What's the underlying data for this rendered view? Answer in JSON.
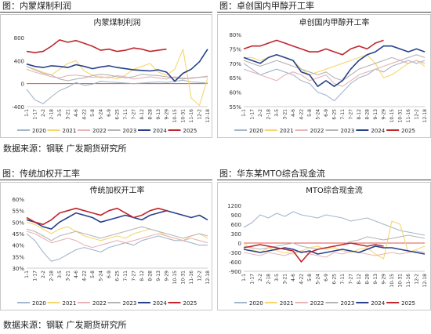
{
  "panels": [
    {
      "header": "图：内蒙煤制利润",
      "chart_data": {
        "type": "line",
        "title": "内蒙煤制利润",
        "ylim": [
          -400,
          800
        ],
        "yticks": [
          "-400",
          "0",
          "400",
          "800"
        ],
        "xticks": [
          "1-1",
          "1-17",
          "2-2",
          "2-18",
          "3-5",
          "3-21",
          "4-6",
          "4-22",
          "5-8",
          "5-24",
          "6-9",
          "6-25",
          "7-11",
          "7-27",
          "8-12",
          "8-28",
          "9-13",
          "9-29",
          "10-15",
          "10-31",
          "11-16",
          "12-2",
          "12-18"
        ],
        "series": [
          {
            "name": "2020",
            "color": "#a3b6cd",
            "values": [
              -100,
              -280,
              -350,
              -230,
              -120,
              -60,
              20,
              -30,
              -10,
              40,
              30,
              20,
              10,
              0,
              10,
              20,
              30,
              20,
              40,
              60,
              30,
              20,
              10
            ]
          },
          {
            "name": "2021",
            "color": "#f5d76e",
            "values": [
              300,
              250,
              200,
              150,
              250,
              350,
              400,
              220,
              150,
              100,
              120,
              80,
              150,
              250,
              300,
              350,
              200,
              150,
              250,
              600,
              -250,
              -380,
              100
            ]
          },
          {
            "name": "2022",
            "color": "#e8b4b8",
            "values": [
              250,
              200,
              160,
              120,
              100,
              140,
              150,
              130,
              110,
              120,
              100,
              140,
              120,
              80,
              100,
              120,
              100,
              80,
              120,
              100,
              90,
              110,
              130
            ]
          },
          {
            "name": "2023",
            "color": "#b5b5b5",
            "values": [
              300,
              240,
              180,
              150,
              80,
              50,
              80,
              100,
              140,
              160,
              150,
              120,
              100,
              120,
              160,
              150,
              140,
              120,
              100,
              80,
              100,
              110,
              120
            ]
          },
          {
            "name": "2024",
            "color": "#27408b",
            "values": [
              340,
              300,
              280,
              310,
              300,
              280,
              330,
              300,
              260,
              290,
              310,
              280,
              260,
              240,
              230,
              220,
              240,
              200,
              40,
              180,
              250,
              380,
              600
            ]
          },
          {
            "name": "2025",
            "color": "#c0272d",
            "values": [
              560,
              540,
              560,
              650,
              760,
              720,
              750,
              700,
              650,
              580,
              600,
              560,
              580,
              620,
              600,
              560,
              580,
              600,
              null,
              null,
              null,
              null,
              null
            ]
          }
        ],
        "legend": "bottom"
      }
    },
    {
      "header": "图：卓创国内甲醇开工率",
      "chart_data": {
        "type": "line",
        "title": "卓创国内甲醇开工率",
        "ylim": [
          55,
          80
        ],
        "yticks": [
          "55%",
          "60%",
          "65%",
          "70%",
          "75%",
          "80%"
        ],
        "xticks": [
          "1-1",
          "1-17",
          "2-2",
          "2-18",
          "3-5",
          "3-21",
          "4-6",
          "4-22",
          "5-8",
          "5-24",
          "6-9",
          "6-25",
          "7-11",
          "7-27",
          "8-12",
          "8-28",
          "9-13",
          "9-29",
          "10-15",
          "10-31",
          "11-16",
          "12-2",
          "12-18"
        ],
        "series": [
          {
            "name": "2020",
            "color": "#a3b6cd",
            "values": [
              70,
              68,
              66,
              67,
              68,
              67,
              66,
              64,
              63,
              60,
              59,
              57,
              60,
              63,
              65,
              66,
              68,
              67,
              69,
              70,
              71,
              70,
              71
            ]
          },
          {
            "name": "2021",
            "color": "#f5d76e",
            "values": [
              72,
              72,
              71,
              72,
              73,
              72,
              71,
              68,
              66,
              67,
              68,
              69,
              70,
              71,
              72,
              73,
              70,
              65,
              66,
              68,
              70,
              71,
              69
            ]
          },
          {
            "name": "2022",
            "color": "#e8b4b8",
            "values": [
              68,
              67,
              66,
              65,
              64,
              66,
              67,
              66,
              64,
              65,
              66,
              63,
              62,
              64,
              66,
              67,
              68,
              69,
              70,
              71,
              70,
              71,
              70
            ]
          },
          {
            "name": "2023",
            "color": "#b5b5b5",
            "values": [
              71,
              70,
              69,
              70,
              71,
              70,
              69,
              68,
              67,
              66,
              67,
              65,
              64,
              66,
              68,
              69,
              70,
              71,
              72,
              71,
              72,
              73,
              72
            ]
          },
          {
            "name": "2024",
            "color": "#27408b",
            "values": [
              72,
              71,
              70,
              72,
              73,
              72,
              71,
              67,
              66,
              62,
              64,
              62,
              64,
              68,
              71,
              73,
              74,
              76,
              76,
              75,
              74,
              75,
              74
            ]
          },
          {
            "name": "2025",
            "color": "#c0272d",
            "values": [
              75,
              76,
              76,
              77,
              78,
              77,
              76,
              75,
              74,
              74,
              75,
              74,
              73,
              75,
              76,
              75,
              77,
              78,
              null,
              null,
              null,
              null,
              null
            ]
          }
        ],
        "legend": "bottom"
      }
    },
    {
      "header": "图：传统加权开工率",
      "chart_data": {
        "type": "line",
        "title": "传统加权开工率",
        "ylim": [
          30,
          60
        ],
        "yticks": [
          "30%",
          "35%",
          "40%",
          "45%",
          "50%",
          "55%",
          "60%"
        ],
        "xticks": [
          "1-1",
          "1-17",
          "2-2",
          "2-18",
          "3-5",
          "3-21",
          "4-6",
          "4-22",
          "5-8",
          "5-24",
          "6-9",
          "6-25",
          "7-11",
          "7-27",
          "8-12",
          "8-28",
          "9-13",
          "9-29",
          "10-15",
          "10-31",
          "11-16",
          "12-2",
          "12-18"
        ],
        "series": [
          {
            "name": "2020",
            "color": "#a3b6cd",
            "values": [
              45,
              42,
              37,
              33,
              34,
              36,
              38,
              39,
              38,
              37,
              39,
              40,
              41,
              40,
              42,
              43,
              44,
              43,
              42,
              42,
              41,
              40,
              40
            ]
          },
          {
            "name": "2021",
            "color": "#f5d76e",
            "values": [
              50,
              49,
              47,
              45,
              47,
              48,
              46,
              44,
              43,
              42,
              43,
              44,
              43,
              45,
              46,
              47,
              46,
              44,
              43,
              42,
              44,
              45,
              43
            ]
          },
          {
            "name": "2022",
            "color": "#e8b4b8",
            "values": [
              46,
              45,
              43,
              41,
              42,
              43,
              42,
              40,
              39,
              40,
              41,
              42,
              41,
              42,
              43,
              44,
              45,
              44,
              43,
              42,
              43,
              42,
              41
            ]
          },
          {
            "name": "2023",
            "color": "#b5b5b5",
            "values": [
              47,
              46,
              44,
              42,
              44,
              45,
              46,
              45,
              44,
              43,
              44,
              45,
              46,
              47,
              48,
              47,
              46,
              45,
              44,
              43,
              44,
              45,
              44
            ]
          },
          {
            "name": "2024",
            "color": "#27408b",
            "values": [
              51,
              50,
              48,
              47,
              50,
              52,
              54,
              53,
              52,
              50,
              51,
              52,
              53,
              52,
              51,
              53,
              54,
              55,
              54,
              53,
              52,
              53,
              51
            ]
          },
          {
            "name": "2025",
            "color": "#c0272d",
            "values": [
              52,
              50,
              49,
              51,
              54,
              55,
              56,
              55,
              54,
              53,
              55,
              56,
              54,
              52,
              53,
              55,
              56,
              55,
              null,
              null,
              null,
              null,
              null
            ]
          }
        ],
        "legend": "bottom"
      }
    },
    {
      "header": "图：华东某MTO综合现金流",
      "chart_data": {
        "type": "line",
        "title": "MTO综合现金流",
        "ylim": [
          -900,
          1200
        ],
        "yticks": [
          "-900",
          "-600",
          "-300",
          "0",
          "300",
          "600",
          "900",
          "1200"
        ],
        "xticks": [
          "1-1",
          "1-17",
          "2-2",
          "2-18",
          "3-5",
          "3-21",
          "4-6",
          "4-22",
          "5-8",
          "5-24",
          "6-9",
          "6-25",
          "7-11",
          "7-27",
          "8-12",
          "8-28",
          "9-13",
          "9-29",
          "10-15",
          "10-31",
          "11-16",
          "12-2",
          "12-18"
        ],
        "series": [
          {
            "name": "2020",
            "color": "#a3b6cd",
            "values": [
              500,
              650,
              900,
              800,
              950,
              850,
              1000,
              900,
              850,
              800,
              900,
              850,
              800,
              700,
              750,
              800,
              700,
              600,
              500,
              400,
              350,
              300,
              250
            ]
          },
          {
            "name": "2021",
            "color": "#f5d76e",
            "values": [
              0,
              -200,
              -300,
              -150,
              -250,
              -300,
              -350,
              -250,
              -150,
              -100,
              -200,
              -150,
              -250,
              -300,
              -200,
              -150,
              -350,
              -500,
              700,
              600,
              -300,
              -200,
              -100
            ]
          },
          {
            "name": "2022",
            "color": "#e8b4b8",
            "values": [
              -300,
              -350,
              -400,
              -300,
              -350,
              -400,
              -300,
              -250,
              -350,
              -400,
              -450,
              -300,
              -350,
              -250,
              -300,
              -350,
              -400,
              -350,
              -300,
              -350,
              -300,
              -250,
              -300
            ]
          },
          {
            "name": "2023",
            "color": "#b5b5b5",
            "values": [
              -100,
              -150,
              -200,
              -150,
              -100,
              -50,
              0,
              -100,
              -150,
              -200,
              -150,
              -100,
              -50,
              50,
              100,
              200,
              150,
              100,
              150,
              200,
              250,
              200,
              150
            ]
          },
          {
            "name": "2024",
            "color": "#27408b",
            "values": [
              -200,
              -250,
              -300,
              -250,
              -200,
              -150,
              -200,
              -300,
              -250,
              -350,
              -300,
              -250,
              -200,
              -250,
              -300,
              -200,
              -100,
              -150,
              -150,
              -200,
              -250,
              -300,
              -350
            ]
          },
          {
            "name": "2025",
            "color": "#c0272d",
            "values": [
              -150,
              -100,
              -50,
              -100,
              -150,
              -200,
              -250,
              -600,
              -300,
              -200,
              -150,
              -100,
              -50,
              0,
              -50,
              -100,
              -50,
              -100,
              null,
              null,
              null,
              null,
              null
            ]
          }
        ],
        "legend": "bottom"
      }
    }
  ],
  "sources": [
    "数据来源：钢联  广发期货研究所",
    "数据来源：钢联  广发期货研究所"
  ]
}
